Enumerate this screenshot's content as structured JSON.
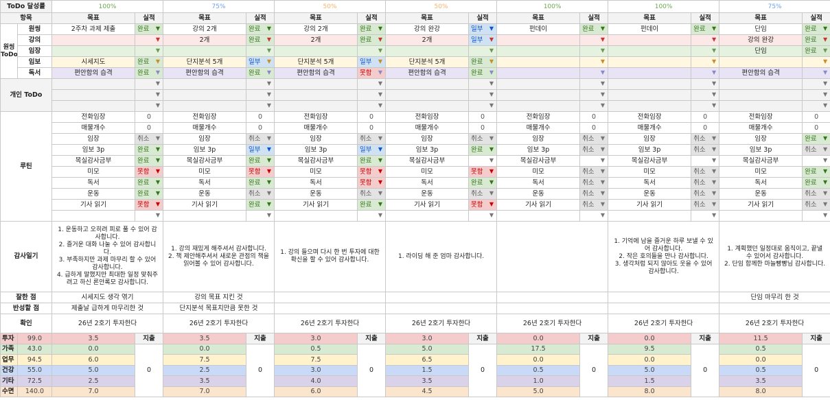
{
  "labels": {
    "title": "ToDo 달성률",
    "item": "항목",
    "goal": "목표",
    "result": "실적",
    "onething_group": "원씽 ToDo",
    "onething_rows": [
      "원씽",
      "강의",
      "임장",
      "임보",
      "독서"
    ],
    "personal": "개인 ToDo",
    "routine": "루틴",
    "gratitude": "감사일기",
    "good": "잘한 점",
    "reflect": "반성할 점",
    "confirm": "확인",
    "expense": "지출"
  },
  "status_colors": {
    "완료": "#d9ead3",
    "일부": "#cfe2f3",
    "못함": "#f4cccc",
    "취소": "#e3e3e3"
  },
  "routine_items": [
    "전화임장",
    "매물개수",
    "임장",
    "임보 3p",
    "목실감사금부",
    "미모",
    "독서",
    "운동",
    "기사 읽기",
    ""
  ],
  "time_categories": [
    {
      "name": "투자",
      "total": "99.0",
      "color": "#f4cccc"
    },
    {
      "name": "가족",
      "total": "43.0",
      "color": "#d9ead3"
    },
    {
      "name": "업무",
      "total": "94.5",
      "color": "#fff2cc"
    },
    {
      "name": "건강",
      "total": "55.0",
      "color": "#c9daf8"
    },
    {
      "name": "기타",
      "total": "72.5",
      "color": "#d9d2e9"
    },
    {
      "name": "수면",
      "total": "140.0",
      "color": "#fce5cd"
    }
  ],
  "days": [
    {
      "pct": "100%",
      "pct_color": "#6aa84f",
      "onething": [
        {
          "goal": "2주차 과제 제출",
          "status": "완료"
        },
        {
          "goal": "",
          "status": ""
        },
        {
          "goal": "",
          "status": ""
        },
        {
          "goal": "시세지도",
          "status": "완료"
        },
        {
          "goal": "편안함의 습격",
          "status": "완료"
        }
      ],
      "routine": [
        "0",
        "0",
        "취소",
        "완료",
        "완료",
        "못함",
        "완료",
        "완료",
        "못함",
        ""
      ],
      "gratitude": "1. 운동하고 오히려 피로 풀 수 있어 감사합니다.\n2. 즐거운 대화 나눌 수 있어 감사합니다.\n3. 부족하지만 과제 마무리 할 수 있어 감사합니다.\n4. 급하게 말했지만 최대한 일정 맞춰주려고 하신 론안록모 감사합니다.",
      "good": "시세지도 생각 엮기",
      "reflect": "제출날 급하게 마무리한 것",
      "confirm": "26년 2호기 투자한다",
      "time": [
        "3.5",
        "0.0",
        "6.0",
        "5.0",
        "2.5",
        "7.0"
      ],
      "expense": "0"
    },
    {
      "pct": "75%",
      "pct_color": "#6d9eeb",
      "onething": [
        {
          "goal": "강의 2개",
          "status": "완료"
        },
        {
          "goal": "2개",
          "status": "완료"
        },
        {
          "goal": "",
          "status": ""
        },
        {
          "goal": "단지분석 5개",
          "status": "일부"
        },
        {
          "goal": "편안함의 습격",
          "status": "완료"
        }
      ],
      "routine": [
        "0",
        "0",
        "취소",
        "일부",
        "완료",
        "못함",
        "완료",
        "취소",
        "완료",
        ""
      ],
      "gratitude": "1. 강의 재밌게 해주셔서 감사합니다.\n2. 책 제안해주셔서 새로운 관점의 책을 읽어볼 수 있어 감사합니다.",
      "good": "강의 목표 지킨 것",
      "reflect": "단지분석 목표치만큼 못한 것",
      "confirm": "26년 2호기 투자한다",
      "time": [
        "3.5",
        "0.0",
        "7.5",
        "2.5",
        "3.5",
        "7.0"
      ],
      "expense": "0"
    },
    {
      "pct": "50%",
      "pct_color": "#f6b26b",
      "onething": [
        {
          "goal": "강의 2개",
          "status": "완료"
        },
        {
          "goal": "2개",
          "status": "완료"
        },
        {
          "goal": "",
          "status": ""
        },
        {
          "goal": "단지분석 5개",
          "status": "일부"
        },
        {
          "goal": "편안함의 습격",
          "status": "못함"
        }
      ],
      "routine": [
        "0",
        "0",
        "취소",
        "일부",
        "완료",
        "못함",
        "못함",
        "취소",
        "완료",
        ""
      ],
      "gratitude": "1. 강의 들으며 다시 한 번 투자에 대한 확신을 할 수 있어 감사합니다.",
      "good": "",
      "reflect": "",
      "confirm": "26년 2호기 투자한다",
      "time": [
        "3.0",
        "0.5",
        "7.5",
        "3.0",
        "4.0",
        "6.0"
      ],
      "expense": "0"
    },
    {
      "pct": "50%",
      "pct_color": "#f6b26b",
      "onething": [
        {
          "goal": "강의 완강",
          "status": "일부"
        },
        {
          "goal": "2개",
          "status": "일부"
        },
        {
          "goal": "",
          "status": ""
        },
        {
          "goal": "단지분석 5개",
          "status": "완료"
        },
        {
          "goal": "편안함의 습격",
          "status": "완료"
        }
      ],
      "routine": [
        "0",
        "0",
        "취소",
        "완료",
        "",
        "못함",
        "완료",
        "취소",
        "못함",
        ""
      ],
      "gratitude": "1. 라이딩 해 준 엄마 감사합니다.",
      "good": "",
      "reflect": "",
      "confirm": "26년 2호기 투자한다",
      "time": [
        "3.0",
        "5.0",
        "6.5",
        "1.5",
        "3.5",
        "4.5"
      ],
      "expense": "0"
    },
    {
      "pct": "100%",
      "pct_color": "#6aa84f",
      "onething": [
        {
          "goal": "펀데이",
          "status": "완료"
        },
        {
          "goal": "",
          "status": ""
        },
        {
          "goal": "",
          "status": ""
        },
        {
          "goal": "",
          "status": ""
        },
        {
          "goal": "",
          "status": ""
        }
      ],
      "routine": [
        "0",
        "0",
        "취소",
        "취소",
        "",
        "취소",
        "취소",
        "취소",
        "취소",
        ""
      ],
      "gratitude": "",
      "good": "",
      "reflect": "",
      "confirm": "26년 2호기 투자한다",
      "time": [
        "0.0",
        "17.5",
        "0.0",
        "0.5",
        "1.0",
        "5.0"
      ],
      "expense": "0"
    },
    {
      "pct": "100%",
      "pct_color": "#6aa84f",
      "onething": [
        {
          "goal": "펀데이",
          "status": "완료"
        },
        {
          "goal": "",
          "status": ""
        },
        {
          "goal": "",
          "status": ""
        },
        {
          "goal": "",
          "status": ""
        },
        {
          "goal": "",
          "status": ""
        }
      ],
      "routine": [
        "0",
        "0",
        "취소",
        "취소",
        "",
        "취소",
        "취소",
        "취소",
        "취소",
        ""
      ],
      "gratitude": "1. 기억에 남을 즐거운 하루 보낼 수 있어 감사합니다.\n2. 작은 호의들을 만나 감사합니다.\n3. 생각처럼 되지 않아도 웃을 수 있어 감사합니다.",
      "good": "",
      "reflect": "",
      "confirm": "26년 2호기 투자한다",
      "time": [
        "0.0",
        "9.5",
        "0.0",
        "5.0",
        "1.5",
        "8.0"
      ],
      "expense": "0"
    },
    {
      "pct": "75%",
      "pct_color": "#6d9eeb",
      "onething": [
        {
          "goal": "단임",
          "status": "완료"
        },
        {
          "goal": "강의 완강",
          "status": "완료"
        },
        {
          "goal": "단임",
          "status": "완료"
        },
        {
          "goal": "",
          "status": ""
        },
        {
          "goal": "편안함의 습격",
          "status": ""
        }
      ],
      "routine": [
        "0",
        "0",
        "완료",
        "취소",
        "",
        "완료",
        "완료",
        "취소",
        "취소",
        ""
      ],
      "gratitude": "1. 계획했던 일정대로 움직이고, 끝낼 수 있어서 감사합니다.\n2. 단임 함께한 마늘빵빵님 감사합니다.",
      "good": "단임 마무리 한 것",
      "reflect": "",
      "confirm": "26년 2호기 투자한다",
      "time": [
        "11.5",
        "0.5",
        "0.0",
        "0.5",
        "3.5",
        "8.0"
      ],
      "expense": "0"
    }
  ]
}
